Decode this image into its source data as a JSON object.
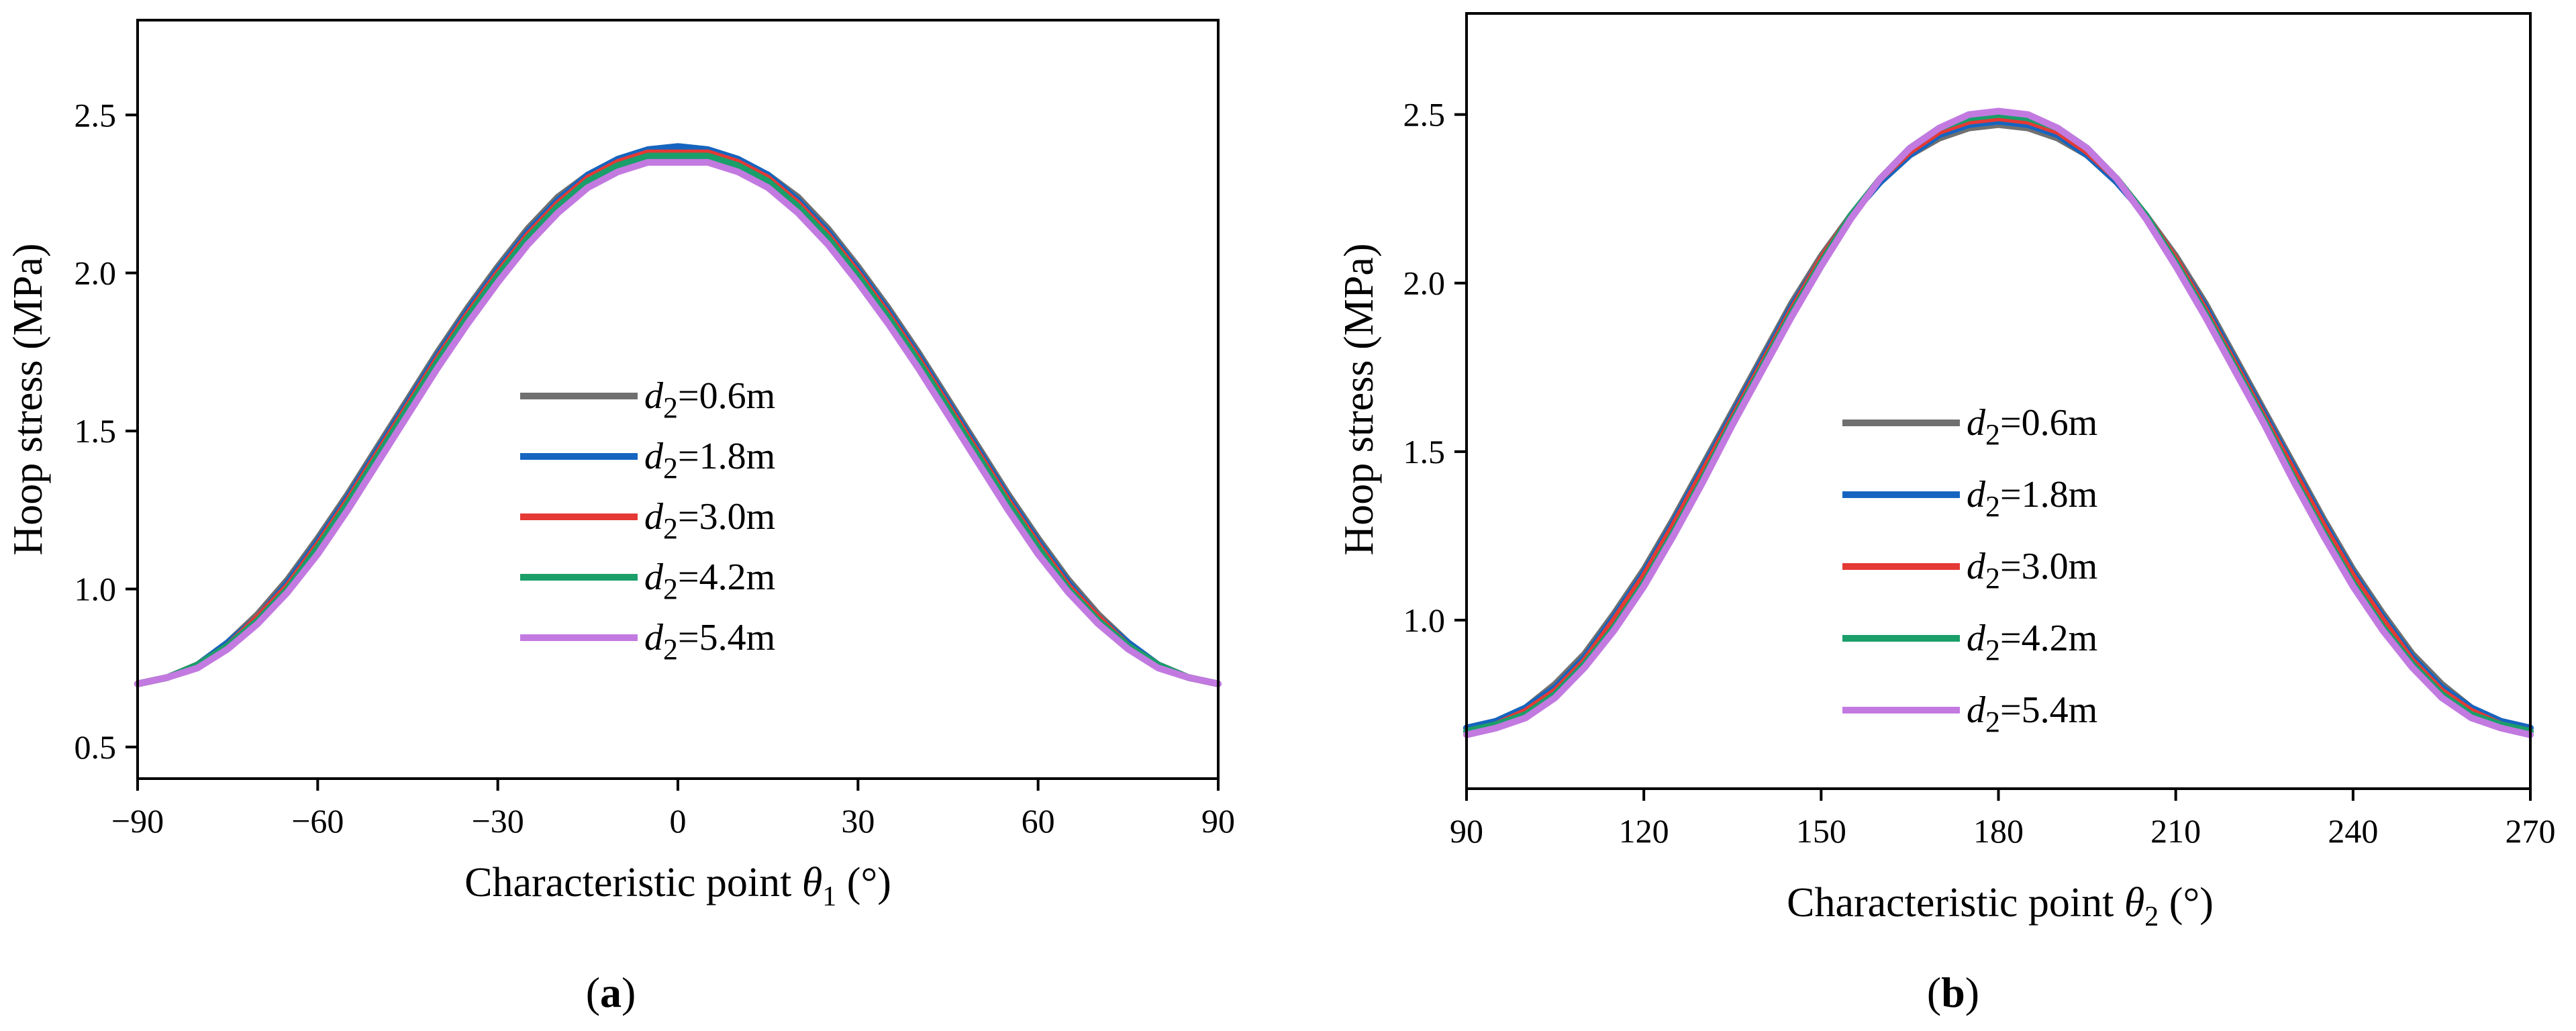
{
  "chart_data": [
    {
      "id": "a",
      "type": "line",
      "caption_letter": "a",
      "xlabel": {
        "main": "Characteristic point ",
        "symbol": "θ",
        "subscript": "1",
        "unit": " (°)"
      },
      "ylabel": "Hoop stress (MPa)",
      "xlim": [
        -90,
        90
      ],
      "ylim": [
        0.4,
        2.8
      ],
      "xticks": [
        -90,
        -60,
        -30,
        0,
        30,
        60,
        90
      ],
      "xtick_labels": [
        "−90",
        "−60",
        "−30",
        "0",
        "30",
        "60",
        "90"
      ],
      "yticks": [
        0.5,
        1.0,
        1.5,
        2.0,
        2.5
      ],
      "ytick_labels": [
        "0.5",
        "1.0",
        "1.5",
        "2.0",
        "2.5"
      ],
      "legend_position": "center-left",
      "x": [
        -90,
        -85,
        -80,
        -75,
        -70,
        -65,
        -60,
        -55,
        -50,
        -45,
        -40,
        -35,
        -30,
        -25,
        -20,
        -15,
        -10,
        -5,
        0,
        5,
        10,
        15,
        20,
        25,
        30,
        35,
        40,
        45,
        50,
        55,
        60,
        65,
        70,
        75,
        80,
        85,
        90
      ],
      "series": [
        {
          "name": "d2=0.6m",
          "color": "#707070",
          "values": [
            0.7,
            0.72,
            0.76,
            0.83,
            0.92,
            1.03,
            1.16,
            1.3,
            1.45,
            1.6,
            1.75,
            1.89,
            2.02,
            2.14,
            2.24,
            2.31,
            2.36,
            2.39,
            2.4,
            2.39,
            2.36,
            2.31,
            2.24,
            2.14,
            2.02,
            1.89,
            1.75,
            1.6,
            1.45,
            1.3,
            1.16,
            1.03,
            0.92,
            0.83,
            0.76,
            0.72,
            0.7
          ]
        },
        {
          "name": "d2=1.8m",
          "color": "#1565c0",
          "values": [
            0.7,
            0.72,
            0.76,
            0.83,
            0.91,
            1.02,
            1.15,
            1.29,
            1.44,
            1.59,
            1.74,
            1.88,
            2.01,
            2.13,
            2.23,
            2.31,
            2.36,
            2.39,
            2.4,
            2.39,
            2.36,
            2.31,
            2.23,
            2.13,
            2.01,
            1.88,
            1.74,
            1.59,
            1.44,
            1.29,
            1.15,
            1.02,
            0.91,
            0.83,
            0.76,
            0.72,
            0.7
          ]
        },
        {
          "name": "d2=3.0m",
          "color": "#e53935",
          "values": [
            0.7,
            0.72,
            0.76,
            0.82,
            0.91,
            1.01,
            1.14,
            1.28,
            1.43,
            1.58,
            1.73,
            1.87,
            2.0,
            2.12,
            2.22,
            2.3,
            2.35,
            2.38,
            2.38,
            2.38,
            2.35,
            2.3,
            2.22,
            2.12,
            2.0,
            1.87,
            1.73,
            1.58,
            1.43,
            1.28,
            1.14,
            1.01,
            0.91,
            0.82,
            0.76,
            0.72,
            0.7
          ]
        },
        {
          "name": "d2=4.2m",
          "color": "#1a9e6a",
          "values": [
            0.7,
            0.72,
            0.76,
            0.82,
            0.9,
            1.0,
            1.13,
            1.27,
            1.42,
            1.57,
            1.72,
            1.86,
            1.99,
            2.11,
            2.21,
            2.29,
            2.34,
            2.37,
            2.37,
            2.37,
            2.34,
            2.29,
            2.21,
            2.11,
            1.99,
            1.86,
            1.72,
            1.57,
            1.42,
            1.27,
            1.13,
            1.0,
            0.9,
            0.82,
            0.76,
            0.72,
            0.7
          ]
        },
        {
          "name": "d2=5.4m",
          "color": "#c27ae0",
          "values": [
            0.7,
            0.72,
            0.75,
            0.81,
            0.89,
            0.99,
            1.11,
            1.25,
            1.4,
            1.55,
            1.7,
            1.84,
            1.97,
            2.09,
            2.19,
            2.27,
            2.32,
            2.35,
            2.35,
            2.35,
            2.32,
            2.27,
            2.19,
            2.09,
            1.97,
            1.84,
            1.7,
            1.55,
            1.4,
            1.25,
            1.11,
            0.99,
            0.89,
            0.81,
            0.75,
            0.72,
            0.7
          ]
        }
      ]
    },
    {
      "id": "b",
      "type": "line",
      "caption_letter": "b",
      "xlabel": {
        "main": "Characteristic point ",
        "symbol": "θ",
        "subscript": "2",
        "unit": " (°)"
      },
      "ylabel": "Hoop stress (MPa)",
      "xlim": [
        90,
        270
      ],
      "ylim": [
        0.5,
        2.8
      ],
      "xticks": [
        90,
        120,
        150,
        180,
        210,
        240,
        270
      ],
      "xtick_labels": [
        "90",
        "120",
        "150",
        "180",
        "210",
        "240",
        "270"
      ],
      "yticks": [
        1.0,
        1.5,
        2.0,
        2.5
      ],
      "ytick_labels": [
        "1.0",
        "1.5",
        "2.0",
        "2.5"
      ],
      "legend_position": "center-left",
      "x": [
        90,
        95,
        100,
        105,
        110,
        115,
        120,
        125,
        130,
        135,
        140,
        145,
        150,
        155,
        160,
        165,
        170,
        175,
        180,
        185,
        190,
        195,
        200,
        205,
        210,
        215,
        220,
        225,
        230,
        235,
        240,
        245,
        250,
        255,
        260,
        265,
        270
      ],
      "series": [
        {
          "name": "d2=0.6m",
          "color": "#707070",
          "values": [
            0.68,
            0.7,
            0.74,
            0.81,
            0.9,
            1.02,
            1.15,
            1.3,
            1.46,
            1.62,
            1.78,
            1.94,
            2.08,
            2.2,
            2.3,
            2.38,
            2.43,
            2.46,
            2.47,
            2.46,
            2.43,
            2.38,
            2.3,
            2.2,
            2.08,
            1.94,
            1.78,
            1.62,
            1.46,
            1.3,
            1.15,
            1.02,
            0.9,
            0.81,
            0.74,
            0.7,
            0.68
          ]
        },
        {
          "name": "d2=1.8m",
          "color": "#1565c0",
          "values": [
            0.68,
            0.7,
            0.74,
            0.8,
            0.89,
            1.01,
            1.14,
            1.29,
            1.45,
            1.61,
            1.77,
            1.93,
            2.07,
            2.2,
            2.3,
            2.38,
            2.44,
            2.47,
            2.48,
            2.47,
            2.44,
            2.38,
            2.3,
            2.2,
            2.07,
            1.93,
            1.77,
            1.61,
            1.45,
            1.29,
            1.14,
            1.01,
            0.89,
            0.8,
            0.74,
            0.7,
            0.68
          ]
        },
        {
          "name": "d2=3.0m",
          "color": "#e53935",
          "values": [
            0.67,
            0.69,
            0.73,
            0.79,
            0.88,
            1.0,
            1.13,
            1.28,
            1.44,
            1.6,
            1.76,
            1.92,
            2.07,
            2.2,
            2.31,
            2.39,
            2.45,
            2.48,
            2.49,
            2.48,
            2.45,
            2.39,
            2.31,
            2.2,
            2.07,
            1.92,
            1.76,
            1.6,
            1.44,
            1.28,
            1.13,
            1.0,
            0.88,
            0.79,
            0.73,
            0.69,
            0.67
          ]
        },
        {
          "name": "d2=4.2m",
          "color": "#1a9e6a",
          "values": [
            0.67,
            0.69,
            0.72,
            0.78,
            0.87,
            0.98,
            1.11,
            1.26,
            1.42,
            1.59,
            1.75,
            1.91,
            2.06,
            2.2,
            2.31,
            2.4,
            2.46,
            2.49,
            2.5,
            2.49,
            2.46,
            2.4,
            2.31,
            2.2,
            2.06,
            1.91,
            1.75,
            1.59,
            1.42,
            1.26,
            1.11,
            0.98,
            0.87,
            0.78,
            0.72,
            0.69,
            0.67
          ]
        },
        {
          "name": "d2=5.4m",
          "color": "#c27ae0",
          "values": [
            0.66,
            0.68,
            0.71,
            0.77,
            0.86,
            0.97,
            1.1,
            1.25,
            1.41,
            1.58,
            1.74,
            1.9,
            2.05,
            2.19,
            2.31,
            2.4,
            2.46,
            2.5,
            2.51,
            2.5,
            2.46,
            2.4,
            2.31,
            2.19,
            2.05,
            1.9,
            1.74,
            1.58,
            1.41,
            1.25,
            1.1,
            0.97,
            0.86,
            0.77,
            0.71,
            0.68,
            0.66
          ]
        }
      ]
    }
  ]
}
